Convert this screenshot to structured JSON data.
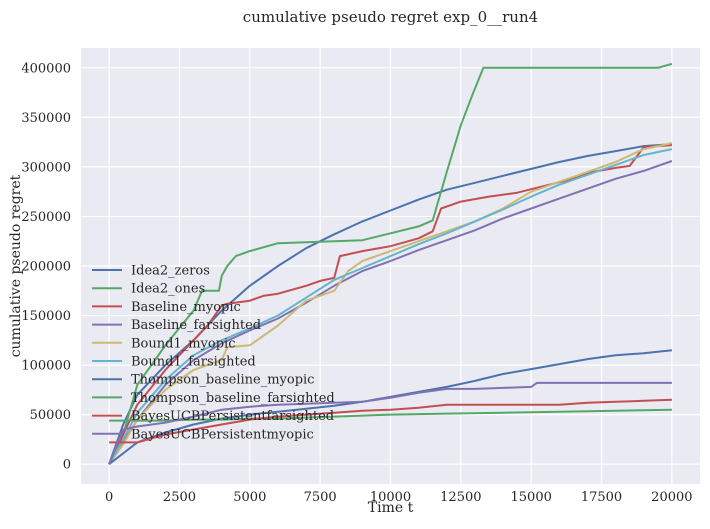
{
  "chart_data": {
    "type": "line",
    "title": "cumulative pseudo regret exp_0__run4",
    "xlabel": "Time t",
    "ylabel": "cumulative pseudo regret",
    "xlim": [
      -1000,
      21000
    ],
    "ylim": [
      -20000,
      420000
    ],
    "xticks": [
      0,
      2500,
      5000,
      7500,
      10000,
      12500,
      15000,
      17500,
      20000
    ],
    "yticks": [
      0,
      50000,
      100000,
      150000,
      200000,
      250000,
      300000,
      350000,
      400000
    ],
    "grid": true,
    "legend_position": "center-left",
    "series": [
      {
        "name": "Idea2_zeros",
        "color": "#4c72b0",
        "x": [
          0,
          500,
          1000,
          2000,
          3000,
          4000,
          5000,
          6000,
          7000,
          8000,
          9000,
          10000,
          11000,
          12000,
          13000,
          14000,
          15000,
          16000,
          17000,
          18000,
          19000,
          20000
        ],
        "y": [
          0,
          40000,
          70000,
          100000,
          125000,
          155000,
          180000,
          200000,
          218000,
          232000,
          245000,
          256000,
          267000,
          277000,
          284000,
          291000,
          298000,
          305000,
          311000,
          316000,
          321000,
          323000
        ]
      },
      {
        "name": "Idea2_ones",
        "color": "#55a868",
        "x": [
          0,
          500,
          1000,
          2000,
          3000,
          3300,
          3500,
          3900,
          4000,
          4200,
          4500,
          5000,
          6000,
          7000,
          8000,
          9000,
          10000,
          11000,
          11500,
          12000,
          12500,
          12900,
          13300,
          14000,
          16000,
          18000,
          19500,
          20000
        ],
        "y": [
          0,
          30000,
          80000,
          120000,
          155000,
          175000,
          175000,
          175000,
          190000,
          200000,
          210000,
          215000,
          223000,
          224000,
          225000,
          226000,
          233000,
          240000,
          246000,
          295000,
          342000,
          372000,
          400000,
          400000,
          400000,
          400000,
          400000,
          404000
        ]
      },
      {
        "name": "Baseline_myopic",
        "color": "#c44e52",
        "x": [
          0,
          500,
          1000,
          2000,
          3000,
          3500,
          4000,
          4200,
          5000,
          5500,
          6000,
          7000,
          7500,
          8000,
          8200,
          9000,
          10000,
          11000,
          11500,
          11800,
          12500,
          13500,
          14500,
          15500,
          16500,
          17000,
          18000,
          18500,
          19000,
          20000
        ],
        "y": [
          0,
          30000,
          60000,
          95000,
          125000,
          140000,
          160000,
          162000,
          165000,
          170000,
          172000,
          180000,
          185000,
          188000,
          210000,
          215000,
          220000,
          228000,
          235000,
          258000,
          265000,
          270000,
          274000,
          281000,
          288000,
          294000,
          299000,
          301000,
          320000,
          322000
        ]
      },
      {
        "name": "Baseline_farsighted",
        "color": "#8172b2",
        "x": [
          0,
          500,
          1000,
          2000,
          3000,
          4000,
          5000,
          6000,
          7000,
          8000,
          9000,
          10000,
          11000,
          12000,
          13000,
          14000,
          15000,
          16000,
          17000,
          18000,
          19000,
          20000
        ],
        "y": [
          0,
          22000,
          45000,
          80000,
          105000,
          122000,
          135000,
          147000,
          163000,
          180000,
          195000,
          205000,
          216000,
          226000,
          236000,
          248000,
          258000,
          268000,
          278000,
          288000,
          296000,
          306000
        ]
      },
      {
        "name": "Bound1_myopic",
        "color": "#ccb974",
        "x": [
          0,
          500,
          1000,
          2000,
          3000,
          4000,
          4200,
          5000,
          6000,
          7000,
          8000,
          8500,
          9000,
          10000,
          11000,
          12000,
          13000,
          14000,
          15000,
          16000,
          17000,
          18000,
          19000,
          20000
        ],
        "y": [
          0,
          20000,
          45000,
          75000,
          95000,
          105000,
          118000,
          120000,
          140000,
          165000,
          175000,
          195000,
          205000,
          215000,
          225000,
          235000,
          245000,
          258000,
          275000,
          285000,
          295000,
          305000,
          318000,
          324000
        ]
      },
      {
        "name": "Bound1_farsighted",
        "color": "#64b5cd",
        "x": [
          0,
          500,
          1000,
          2000,
          3000,
          4000,
          5000,
          6000,
          7000,
          8000,
          9000,
          10000,
          11000,
          12000,
          13000,
          14000,
          15000,
          16000,
          17000,
          18000,
          19000,
          20000
        ],
        "y": [
          0,
          25000,
          52000,
          85000,
          110000,
          125000,
          137000,
          150000,
          168000,
          186000,
          198000,
          210000,
          222000,
          233000,
          245000,
          257000,
          270000,
          282000,
          292000,
          302000,
          312000,
          318000
        ]
      },
      {
        "name": "Thompson_baseline_myopic",
        "color": "#4c72b0",
        "x": [
          0,
          1000,
          2000,
          3000,
          4000,
          5000,
          6000,
          7000,
          8000,
          9000,
          10000,
          11000,
          12000,
          13000,
          14000,
          15000,
          16000,
          17000,
          18000,
          19000,
          20000
        ],
        "y": [
          0,
          22000,
          32000,
          40000,
          46000,
          50000,
          53000,
          56000,
          59000,
          63000,
          68000,
          73000,
          78000,
          84000,
          91000,
          96000,
          101000,
          106000,
          110000,
          112000,
          115000
        ]
      },
      {
        "name": "Thompson_baseline_farsighted",
        "color": "#55a868",
        "x": [
          0,
          1000,
          2000,
          3000,
          4000,
          5000,
          6000,
          7000,
          8000,
          9000,
          10000,
          12000,
          14000,
          16000,
          18000,
          20000
        ],
        "y": [
          44000,
          44000,
          44000,
          45000,
          45000,
          46000,
          46000,
          47000,
          48000,
          49000,
          50000,
          51000,
          52000,
          53000,
          54000,
          55000
        ]
      },
      {
        "name": "BayesUCBPersistentfarsighted",
        "color": "#c44e52",
        "x": [
          0,
          1000,
          2000,
          3000,
          4000,
          5000,
          6000,
          7000,
          8000,
          9000,
          10000,
          11000,
          12000,
          14000,
          16000,
          17000,
          18000,
          19000,
          20000
        ],
        "y": [
          22000,
          22000,
          30000,
          35000,
          40000,
          45000,
          48000,
          50000,
          52000,
          54000,
          55000,
          57000,
          60000,
          60000,
          60000,
          62000,
          63000,
          64000,
          65000
        ]
      },
      {
        "name": "BayesUCBPersistentmyopic",
        "color": "#8172b2",
        "x": [
          0,
          500,
          1000,
          2000,
          3000,
          4000,
          5000,
          6000,
          7000,
          8000,
          9000,
          10000,
          11000,
          12000,
          13000,
          14000,
          15000,
          15200,
          16000,
          18000,
          20000
        ],
        "y": [
          0,
          35000,
          38000,
          42000,
          48000,
          55000,
          58000,
          60000,
          61000,
          62000,
          63000,
          67000,
          72000,
          76000,
          76000,
          77000,
          78000,
          82000,
          82000,
          82000,
          82000
        ]
      }
    ]
  }
}
